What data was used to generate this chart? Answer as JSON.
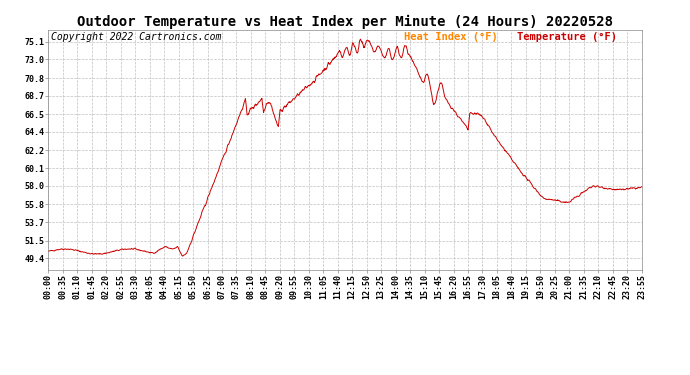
{
  "title": "Outdoor Temperature vs Heat Index per Minute (24 Hours) 20220528",
  "copyright_text": "Copyright 2022 Cartronics.com",
  "legend_label1": "Heat Index (°F)",
  "legend_label2": "Temperature (°F)",
  "legend_color1": "#ff8800",
  "legend_color2": "#cc0000",
  "line_color": "#cc0000",
  "background_color": "#ffffff",
  "grid_color": "#c0c0c0",
  "title_color": "#000000",
  "copyright_color": "#000000",
  "yticks": [
    49.4,
    51.5,
    53.7,
    55.8,
    58.0,
    60.1,
    62.2,
    64.4,
    66.5,
    68.7,
    70.8,
    73.0,
    75.1
  ],
  "ylim": [
    48.0,
    76.5
  ],
  "xtick_labels": [
    "00:00",
    "00:35",
    "01:10",
    "01:45",
    "02:20",
    "02:55",
    "03:30",
    "04:05",
    "04:40",
    "05:15",
    "05:50",
    "06:25",
    "07:00",
    "07:35",
    "08:10",
    "08:45",
    "09:20",
    "09:55",
    "10:30",
    "11:05",
    "11:40",
    "12:15",
    "12:50",
    "13:25",
    "14:00",
    "14:35",
    "15:10",
    "15:45",
    "16:20",
    "16:55",
    "17:30",
    "18:05",
    "18:40",
    "19:15",
    "19:50",
    "20:25",
    "21:00",
    "21:35",
    "22:10",
    "22:45",
    "23:20",
    "23:55"
  ],
  "title_fontsize": 10,
  "copyright_fontsize": 7,
  "tick_fontsize": 6,
  "legend_fontsize": 7.5
}
